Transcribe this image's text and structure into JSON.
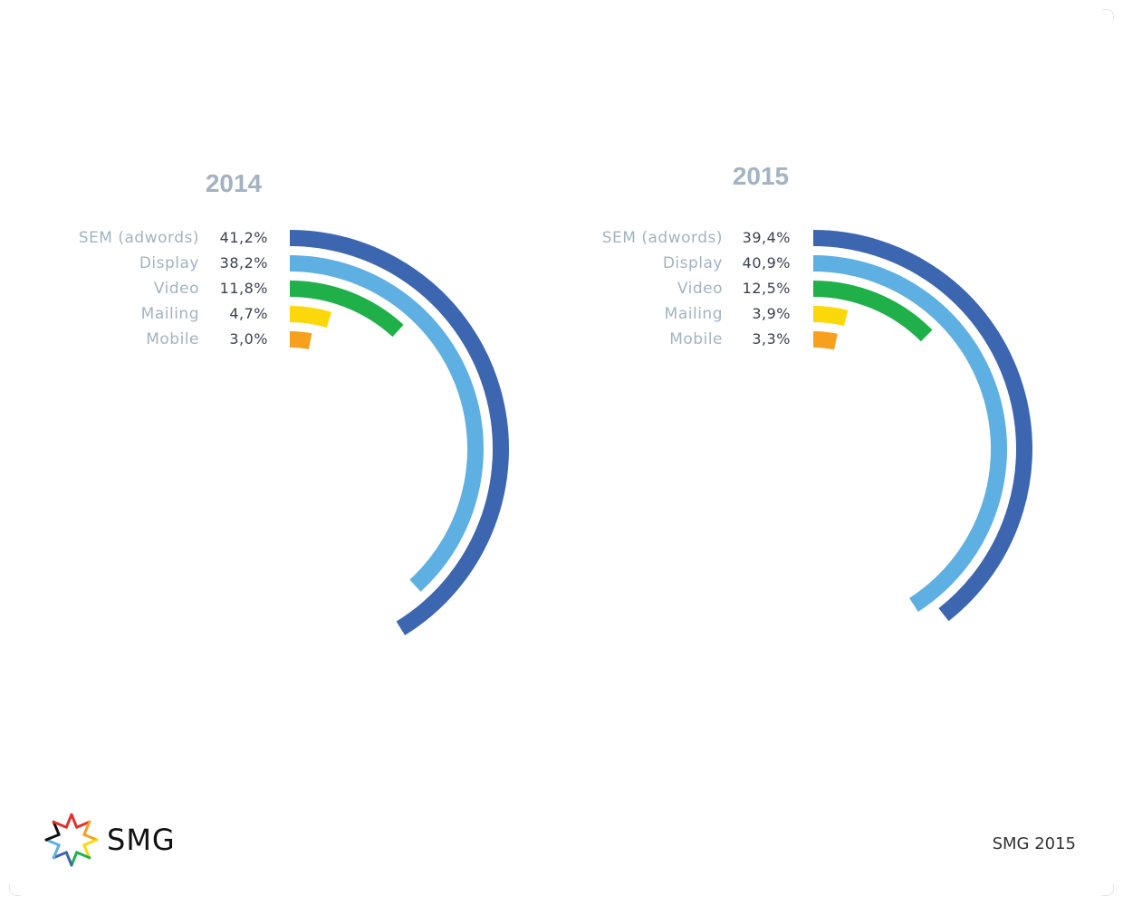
{
  "chart_data": [
    {
      "type": "radial-bar",
      "title": "2014",
      "categories": [
        "SEM (adwords)",
        "Display",
        "Video",
        "Mailing",
        "Mobile"
      ],
      "values": [
        41.2,
        38.2,
        11.8,
        4.7,
        3.0
      ],
      "value_labels": [
        "41,2%",
        "38,2%",
        "11,8%",
        "4,7%",
        "3,0%"
      ],
      "colors": [
        "#3d66b0",
        "#5fb0e2",
        "#20b04a",
        "#fcd80a",
        "#f7a01e"
      ]
    },
    {
      "type": "radial-bar",
      "title": "2015",
      "categories": [
        "SEM (adwords)",
        "Display",
        "Video",
        "Mailing",
        "Mobile"
      ],
      "values": [
        39.4,
        40.9,
        12.5,
        3.9,
        3.3
      ],
      "value_labels": [
        "39,4%",
        "40,9%",
        "12,5%",
        "3,9%",
        "3,3%"
      ],
      "colors": [
        "#3d66b0",
        "#5fb0e2",
        "#20b04a",
        "#fcd80a",
        "#f7a01e"
      ]
    }
  ],
  "logo": {
    "text": "SMG",
    "icon": "smg-star-icon",
    "colors": [
      "#e0322c",
      "#f7a01e",
      "#fcd80a",
      "#20b04a",
      "#3d66b0",
      "#5fb0e2",
      "#111111"
    ]
  },
  "footer": {
    "credit": "SMG 2015"
  }
}
